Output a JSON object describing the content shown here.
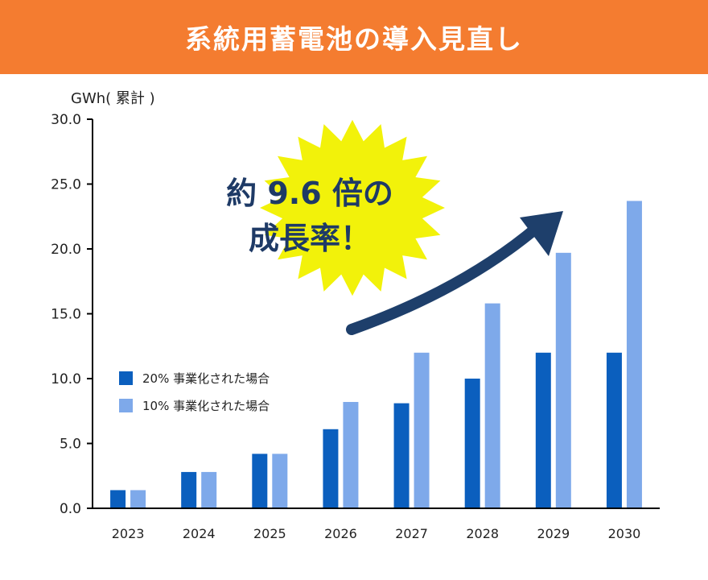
{
  "header": {
    "title": "系統用蓄電池の導入見直し",
    "background": "#F47C30"
  },
  "callout": {
    "line1": "約 9.6 倍の",
    "line2": "成長率！",
    "burst_color": "#F2F20A",
    "arrow_color": "#1E3F6B",
    "text_color": "#1E3A66"
  },
  "chart_data": {
    "type": "bar",
    "ylabel": "GWh( 累計 )",
    "ylim": [
      0,
      30
    ],
    "yticks": [
      "0.0",
      "5.0",
      "10.0",
      "15.0",
      "20.0",
      "25.0",
      "30.0"
    ],
    "categories": [
      "2023",
      "2024",
      "2025",
      "2026",
      "2027",
      "2028",
      "2029",
      "2030"
    ],
    "series": [
      {
        "name": "20% 事業化された場合",
        "color": "#0B5FBE",
        "values": [
          1.4,
          2.8,
          4.2,
          6.1,
          8.1,
          10.0,
          12.0,
          12.0
        ]
      },
      {
        "name": "10% 事業化された場合",
        "color": "#7EA9EA",
        "values": [
          1.4,
          2.8,
          4.2,
          8.2,
          12.0,
          15.8,
          19.7,
          23.7
        ]
      }
    ],
    "grid": false,
    "legend": "center-left"
  }
}
